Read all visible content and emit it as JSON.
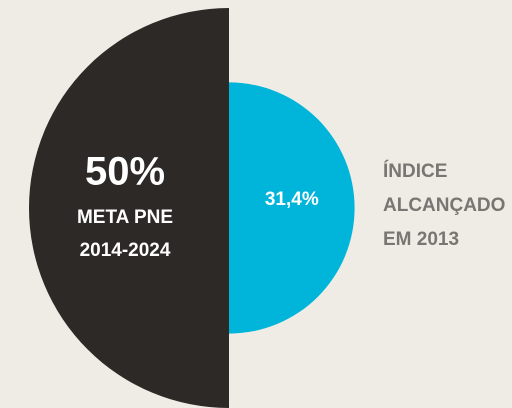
{
  "chart_data": {
    "type": "semicircle",
    "series": [
      {
        "label_lines": [
          "META PNE",
          "2014-2024"
        ],
        "value": 50,
        "value_label": "50%",
        "color": "#2d2926",
        "side": "left"
      },
      {
        "label_lines": [
          "ÍNDICE",
          "ALCANÇADO",
          "EM 2013"
        ],
        "value": 31.4,
        "value_label": "31,4%",
        "color": "#00b5d9",
        "side": "right"
      }
    ]
  }
}
